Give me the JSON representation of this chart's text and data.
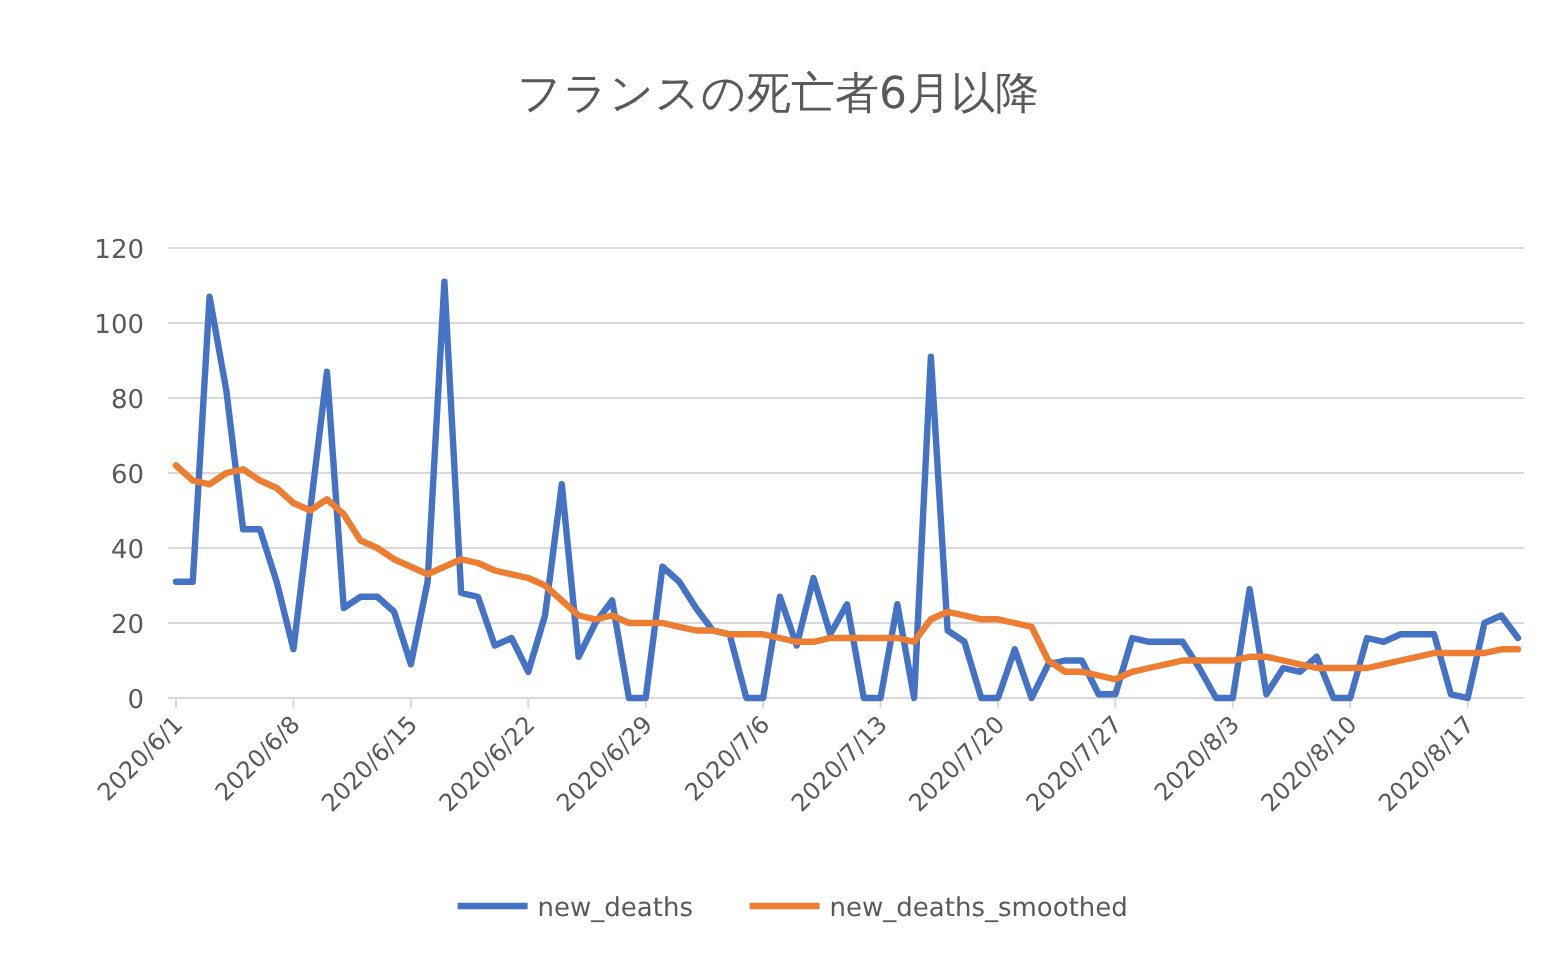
{
  "chart_data": {
    "type": "line",
    "title": "フランスの死亡者6月以降",
    "categories": [
      "2020/6/1",
      null,
      null,
      null,
      null,
      null,
      null,
      "2020/6/8",
      null,
      null,
      null,
      null,
      null,
      null,
      "2020/6/15",
      null,
      null,
      null,
      null,
      null,
      null,
      "2020/6/22",
      null,
      null,
      null,
      null,
      null,
      null,
      "2020/6/29",
      null,
      null,
      null,
      null,
      null,
      null,
      "2020/7/6",
      null,
      null,
      null,
      null,
      null,
      null,
      "2020/7/13",
      null,
      null,
      null,
      null,
      null,
      null,
      "2020/7/20",
      null,
      null,
      null,
      null,
      null,
      null,
      "2020/7/27",
      null,
      null,
      null,
      null,
      null,
      null,
      "2020/8/3",
      null,
      null,
      null,
      null,
      null,
      null,
      "2020/8/10",
      null,
      null,
      null,
      null,
      null,
      null,
      "2020/8/17",
      null,
      null,
      null
    ],
    "series": [
      {
        "name": "new_deaths",
        "color": "#4472c4",
        "values": [
          31,
          31,
          107,
          82,
          45,
          45,
          31,
          13,
          50,
          87,
          24,
          27,
          27,
          23,
          9,
          31,
          111,
          28,
          27,
          14,
          16,
          7,
          22,
          57,
          11,
          20,
          26,
          0,
          0,
          35,
          31,
          24,
          18,
          17,
          0,
          0,
          27,
          14,
          32,
          17,
          25,
          0,
          0,
          25,
          0,
          91,
          18,
          15,
          0,
          0,
          13,
          0,
          9,
          10,
          10,
          1,
          1,
          16,
          15,
          15,
          15,
          8,
          0,
          0,
          29,
          1,
          8,
          7,
          11,
          0,
          0,
          16,
          15,
          17,
          17,
          17,
          1,
          0,
          20,
          22,
          16
        ]
      },
      {
        "name": "new_deaths_smoothed",
        "color": "#ed7d31",
        "values": [
          62,
          58,
          57,
          60,
          61,
          58,
          56,
          52,
          50,
          53,
          49,
          42,
          40,
          37,
          35,
          33,
          35,
          37,
          36,
          34,
          33,
          32,
          30,
          26,
          22,
          21,
          22,
          20,
          20,
          20,
          19,
          18,
          18,
          17,
          17,
          17,
          16,
          15,
          15,
          16,
          16,
          16,
          16,
          16,
          15,
          21,
          23,
          22,
          21,
          21,
          20,
          19,
          10,
          7,
          7,
          6,
          5,
          7,
          8,
          9,
          10,
          10,
          10,
          10,
          11,
          11,
          10,
          9,
          8,
          8,
          8,
          8,
          9,
          10,
          11,
          12,
          12,
          12,
          12,
          13,
          13
        ]
      }
    ],
    "ylim": [
      0,
      120
    ],
    "yticks": [
      0,
      20,
      40,
      60,
      80,
      100,
      120
    ],
    "grid": "y",
    "legend": "bottom",
    "line_style": "solid",
    "marker": "none"
  }
}
